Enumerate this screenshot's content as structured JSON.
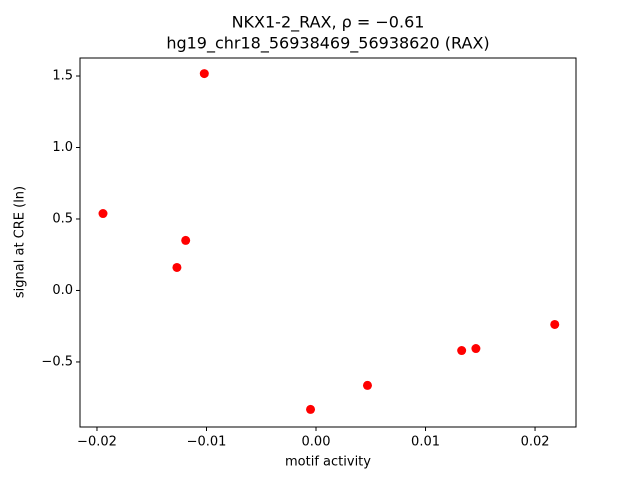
{
  "chart_data": {
    "type": "scatter",
    "title": "NKX1-2_RAX, ρ = −0.61",
    "subtitle": "hg19_chr18_56938469_56938620 (RAX)",
    "x_label": "motif activity",
    "y_label": "signal at CRE (ln)",
    "series": [
      {
        "color": "#ff0000",
        "x": [
          -0.01945,
          -0.0102,
          -0.0119,
          -0.0127,
          -0.0005,
          0.0047,
          0.0133,
          0.0146,
          0.0218
        ],
        "values": [
          0.538,
          1.517,
          0.35,
          0.161,
          -0.832,
          -0.664,
          -0.42,
          -0.406,
          -0.238
        ]
      }
    ],
    "xlim": [
      -0.02155,
      0.02374
    ],
    "ylim": [
      -0.955,
      1.626
    ],
    "xticks": [
      {
        "value": -0.02,
        "label": "−0.02"
      },
      {
        "value": -0.01,
        "label": "−0.01"
      },
      {
        "value": 0,
        "label": "0.00"
      },
      0.01,
      0.02
    ],
    "yticks": [
      {
        "value": -0.5,
        "label": "−0.5"
      },
      {
        "value": 0,
        "label": "0.0"
      },
      0.5,
      {
        "value": 1,
        "label": "1.0"
      },
      1.5
    ],
    "grid": false
  }
}
